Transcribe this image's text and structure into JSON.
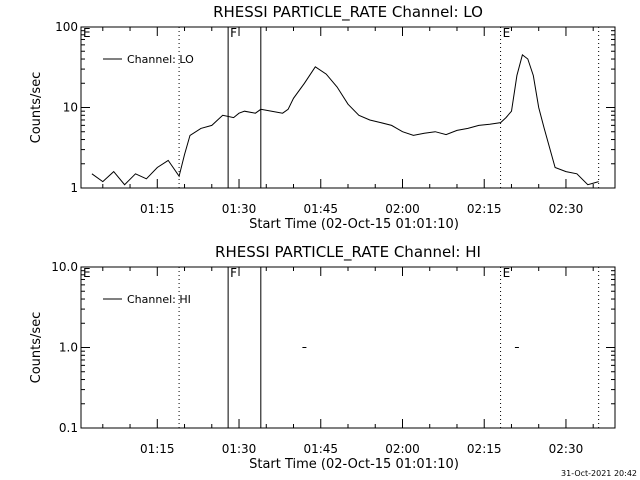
{
  "chart_data": [
    {
      "type": "line",
      "title": "RHESSI PARTICLE_RATE Channel: LO",
      "xlabel": "Start Time (02-Oct-15 01:01:10)",
      "ylabel": "Counts/sec",
      "yscale": "log",
      "ylim": [
        1,
        100
      ],
      "y_ticks": [
        {
          "value": 1,
          "label": "1"
        },
        {
          "value": 10,
          "label": "10"
        },
        {
          "value": 100,
          "label": "100"
        }
      ],
      "x_range": [
        "01:01",
        "02:39"
      ],
      "x_ticks": [
        "01:15",
        "01:30",
        "01:45",
        "02:00",
        "02:15",
        "02:30"
      ],
      "legend": {
        "placement": "top-left",
        "entries": [
          "Channel: LO"
        ]
      },
      "series": [
        {
          "name": "Channel: LO",
          "x": [
            "01:03",
            "01:05",
            "01:07",
            "01:09",
            "01:11",
            "01:13",
            "01:15",
            "01:17",
            "01:19",
            "01:20",
            "01:21",
            "01:23",
            "01:25",
            "01:27",
            "01:29",
            "01:30",
            "01:31",
            "01:33",
            "01:34",
            "01:36",
            "01:38",
            "01:39",
            "01:40",
            "01:42",
            "01:44",
            "01:46",
            "01:48",
            "01:50",
            "01:52",
            "01:54",
            "01:56",
            "01:58",
            "02:00",
            "02:02",
            "02:04",
            "02:06",
            "02:08",
            "02:10",
            "02:12",
            "02:14",
            "02:16",
            "02:18",
            "02:19",
            "02:20",
            "02:21",
            "02:22",
            "02:23",
            "02:24",
            "02:25",
            "02:26",
            "02:28",
            "02:30",
            "02:32",
            "02:34",
            "02:36"
          ],
          "y": [
            1.5,
            1.2,
            1.6,
            1.1,
            1.5,
            1.3,
            1.8,
            2.2,
            1.4,
            2.6,
            4.5,
            5.5,
            6.0,
            8.0,
            7.5,
            8.5,
            9.0,
            8.5,
            9.5,
            9.0,
            8.5,
            9.5,
            13.0,
            20.0,
            32.0,
            26.0,
            18.0,
            11.0,
            8.0,
            7.0,
            6.5,
            6.0,
            5.0,
            4.5,
            4.8,
            5.0,
            4.6,
            5.2,
            5.5,
            6.0,
            6.2,
            6.5,
            7.5,
            9.0,
            25.0,
            45.0,
            40.0,
            25.0,
            10.0,
            5.5,
            1.8,
            1.6,
            1.5,
            1.1,
            1.2
          ]
        }
      ],
      "markers": [
        {
          "label": "E",
          "time": "01:01",
          "style": "none"
        },
        {
          "label": "",
          "time": "01:19",
          "style": "dotted"
        },
        {
          "label": "F",
          "time": "01:28",
          "style": "solid"
        },
        {
          "label": "",
          "time": "01:34",
          "style": "solid"
        },
        {
          "label": "E",
          "time": "02:18",
          "style": "dotted"
        },
        {
          "label": "",
          "time": "02:36",
          "style": "dotted"
        }
      ]
    },
    {
      "type": "line",
      "title": "RHESSI PARTICLE_RATE Channel: HI",
      "xlabel": "Start Time (02-Oct-15 01:01:10)",
      "ylabel": "Counts/sec",
      "yscale": "log",
      "ylim": [
        0.1,
        10
      ],
      "y_ticks": [
        {
          "value": 0.1,
          "label": "0.1"
        },
        {
          "value": 1,
          "label": "1.0"
        },
        {
          "value": 10,
          "label": "10.0"
        }
      ],
      "x_range": [
        "01:01",
        "02:39"
      ],
      "x_ticks": [
        "01:15",
        "01:30",
        "01:45",
        "02:00",
        "02:15",
        "02:30"
      ],
      "legend": {
        "placement": "top-left",
        "entries": [
          "Channel: HI"
        ]
      },
      "series": [
        {
          "name": "Channel: HI",
          "x": [
            "01:42",
            "02:21"
          ],
          "y": [
            1.0,
            1.0
          ]
        }
      ],
      "markers": [
        {
          "label": "E",
          "time": "01:01",
          "style": "none"
        },
        {
          "label": "",
          "time": "01:19",
          "style": "dotted"
        },
        {
          "label": "F",
          "time": "01:28",
          "style": "solid"
        },
        {
          "label": "",
          "time": "01:34",
          "style": "solid"
        },
        {
          "label": "E",
          "time": "02:18",
          "style": "dotted"
        },
        {
          "label": "",
          "time": "02:36",
          "style": "dotted"
        }
      ]
    }
  ],
  "footer": {
    "timestamp": "31-Oct-2021 20:42"
  }
}
